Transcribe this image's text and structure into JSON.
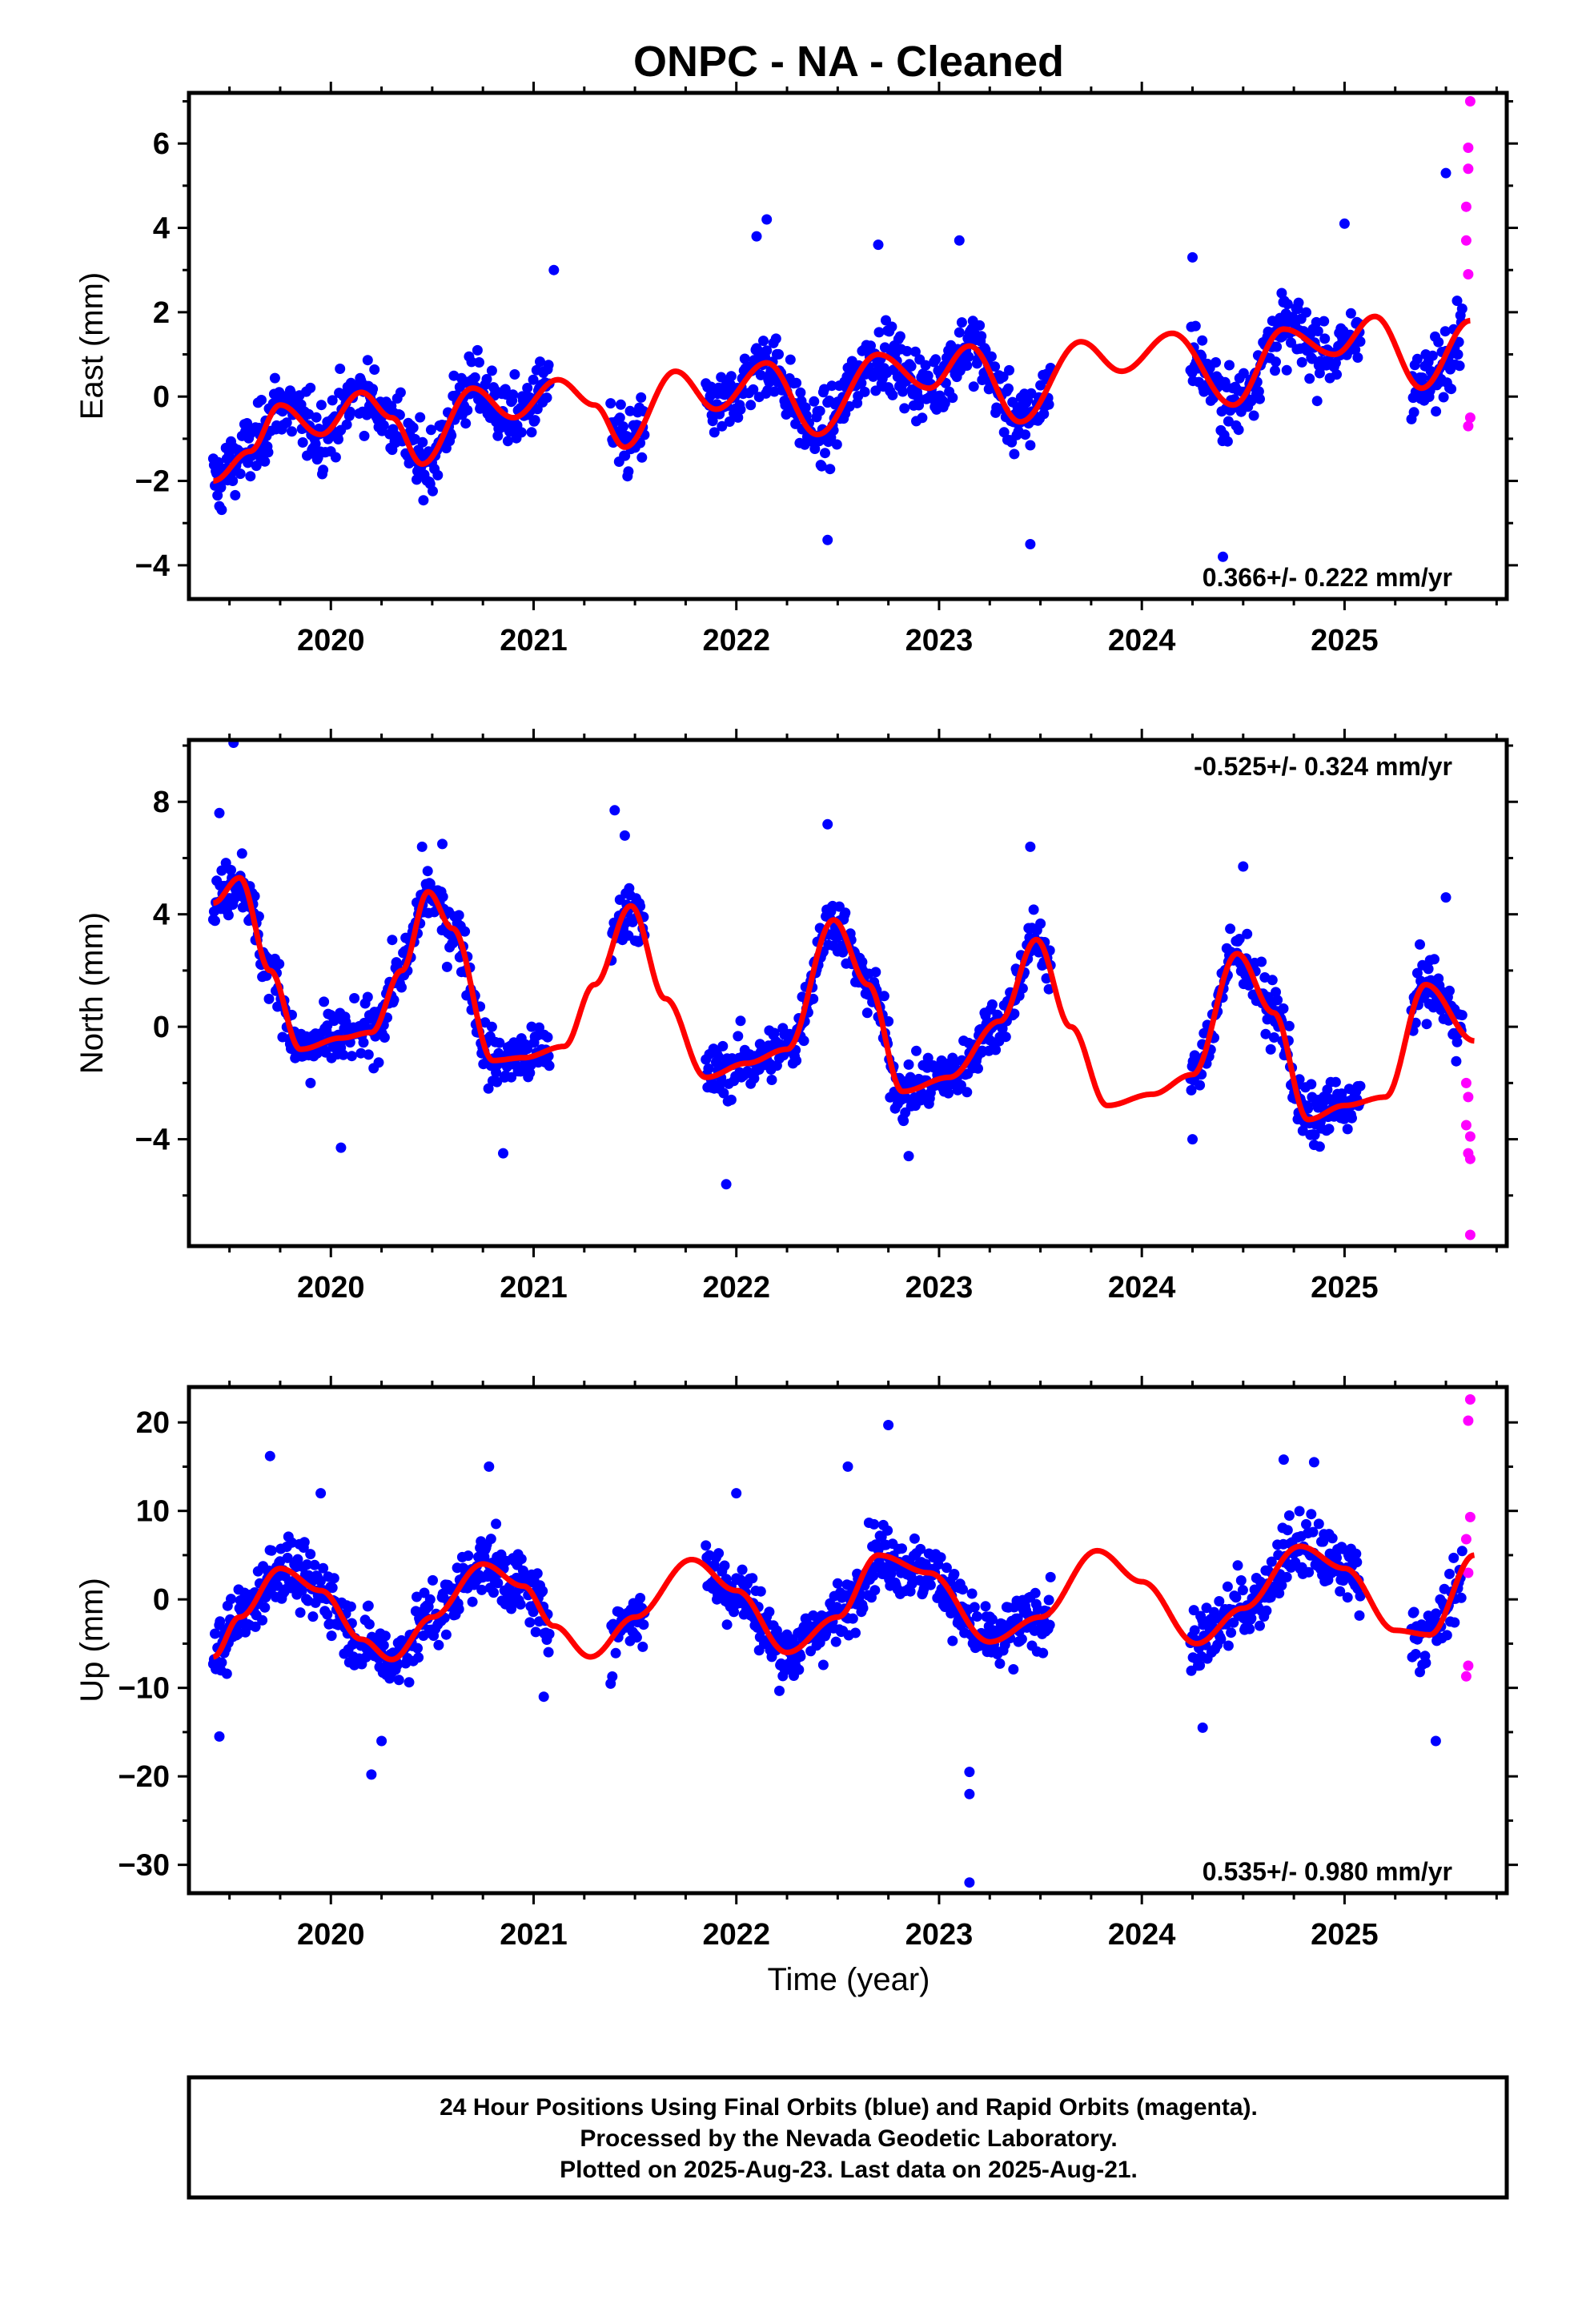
{
  "title": "ONPC  - NA - Cleaned",
  "xlabel": "Time (year)",
  "footer": {
    "line1": "24 Hour Positions Using Final Orbits (blue) and Rapid Orbits (magenta).",
    "line2": "Processed by the Nevada Geodetic Laboratory.",
    "line3": "Plotted on 2025-Aug-23. Last data on 2025-Aug-21."
  },
  "colors": {
    "final_orbits": "#0000ff",
    "rapid_orbits": "#ff00ff",
    "model_fit": "#ff0000",
    "frame": "#000000"
  },
  "chart_data": [
    {
      "type": "scatter",
      "component": "East",
      "ylabel": "East (mm)",
      "rate_text": "0.366+/- 0.222 mm/yr",
      "rate_position": "bottom-right",
      "xlim": [
        2019.3,
        2025.8
      ],
      "ylim": [
        -4.8,
        7.2
      ],
      "x_ticks": [
        2020,
        2021,
        2022,
        2023,
        2024,
        2025
      ],
      "y_ticks": [
        -4,
        -2,
        0,
        2,
        4,
        6
      ],
      "grid": false,
      "trend": {
        "rate_mm_per_yr": 0.366,
        "offset_mm": 0.25
      },
      "data_segments": [
        [
          2019.42,
          2020.12
        ],
        [
          2020.14,
          2021.08
        ],
        [
          2021.38,
          2021.55
        ],
        [
          2021.85,
          2023.55
        ],
        [
          2024.24,
          2025.08
        ],
        [
          2025.33,
          2025.58
        ]
      ],
      "rapid_segment": [
        2025.58,
        2025.64
      ],
      "model_fit": {
        "name": "model fit",
        "x": [
          2019.42,
          2019.6,
          2019.75,
          2019.95,
          2020.15,
          2020.3,
          2020.45,
          2020.7,
          2020.9,
          2021.12,
          2021.3,
          2021.45,
          2021.7,
          2021.9,
          2022.15,
          2022.4,
          2022.7,
          2022.95,
          2023.15,
          2023.4,
          2023.7,
          2023.9,
          2024.15,
          2024.45,
          2024.7,
          2024.95,
          2025.15,
          2025.38,
          2025.62
        ],
        "y": [
          -2.0,
          -1.3,
          -0.2,
          -0.9,
          0.1,
          -0.5,
          -1.6,
          0.2,
          -0.5,
          0.4,
          -0.2,
          -1.2,
          0.6,
          -0.3,
          0.8,
          -0.9,
          1.0,
          0.2,
          1.2,
          -0.6,
          1.3,
          0.6,
          1.5,
          -0.2,
          1.6,
          1.0,
          1.9,
          0.2,
          1.8
        ]
      },
      "samples": [
        {
          "x": 2019.45,
          "y": -2.6
        },
        {
          "x": 2019.5,
          "y": -1.7
        },
        {
          "x": 2019.6,
          "y": -0.9
        },
        {
          "x": 2019.8,
          "y": -0.3
        },
        {
          "x": 2020.0,
          "y": -0.7
        },
        {
          "x": 2020.15,
          "y": 0.2
        },
        {
          "x": 2020.4,
          "y": -1.4
        },
        {
          "x": 2020.7,
          "y": 0.4
        },
        {
          "x": 2021.05,
          "y": 0.6
        },
        {
          "x": 2021.1,
          "y": 3.0
        },
        {
          "x": 2021.45,
          "y": -1.0
        },
        {
          "x": 2022.1,
          "y": 3.8
        },
        {
          "x": 2022.15,
          "y": 4.2
        },
        {
          "x": 2022.45,
          "y": -3.4
        },
        {
          "x": 2022.7,
          "y": 3.6
        },
        {
          "x": 2023.1,
          "y": 3.7
        },
        {
          "x": 2023.45,
          "y": -3.5
        },
        {
          "x": 2024.25,
          "y": 3.3
        },
        {
          "x": 2024.4,
          "y": -3.8
        },
        {
          "x": 2025.0,
          "y": 4.1
        },
        {
          "x": 2025.5,
          "y": 5.3
        }
      ],
      "rapid_samples": [
        {
          "x": 2025.62,
          "y": 7.0
        },
        {
          "x": 2025.61,
          "y": 5.9
        },
        {
          "x": 2025.61,
          "y": 5.4
        },
        {
          "x": 2025.6,
          "y": 4.5
        },
        {
          "x": 2025.6,
          "y": 3.7
        },
        {
          "x": 2025.61,
          "y": 2.9
        },
        {
          "x": 2025.62,
          "y": -0.5
        },
        {
          "x": 2025.61,
          "y": -0.7
        }
      ]
    },
    {
      "type": "scatter",
      "component": "North",
      "ylabel": "North (mm)",
      "rate_text": "-0.525+/- 0.324 mm/yr",
      "rate_position": "top-right",
      "xlim": [
        2019.3,
        2025.8
      ],
      "ylim": [
        -7.8,
        10.2
      ],
      "x_ticks": [
        2020,
        2021,
        2022,
        2023,
        2024,
        2025
      ],
      "y_ticks": [
        -4,
        0,
        4,
        8
      ],
      "grid": false,
      "trend": {
        "rate_mm_per_yr": -0.525,
        "offset_mm": 0
      },
      "data_segments": [
        [
          2019.42,
          2020.12
        ],
        [
          2020.14,
          2021.08
        ],
        [
          2021.38,
          2021.55
        ],
        [
          2021.85,
          2023.55
        ],
        [
          2024.24,
          2025.08
        ],
        [
          2025.33,
          2025.58
        ]
      ],
      "rapid_segment": [
        2025.58,
        2025.64
      ],
      "model_fit": {
        "name": "model fit",
        "x": [
          2019.42,
          2019.55,
          2019.7,
          2019.85,
          2020.05,
          2020.2,
          2020.35,
          2020.48,
          2020.6,
          2020.8,
          2020.95,
          2021.15,
          2021.3,
          2021.48,
          2021.65,
          2021.85,
          2022.05,
          2022.25,
          2022.48,
          2022.65,
          2022.82,
          2023.05,
          2023.3,
          2023.48,
          2023.65,
          2023.83,
          2024.05,
          2024.25,
          2024.47,
          2024.65,
          2024.82,
          2025.0,
          2025.2,
          2025.4,
          2025.64
        ],
        "y": [
          4.4,
          5.3,
          2.0,
          -0.8,
          -0.4,
          -0.2,
          2.0,
          4.8,
          3.5,
          -1.2,
          -1.1,
          -0.7,
          1.5,
          4.3,
          1.0,
          -1.8,
          -1.3,
          -0.8,
          3.8,
          1.5,
          -2.3,
          -1.8,
          0.2,
          3.1,
          0.0,
          -2.8,
          -2.4,
          -1.7,
          2.6,
          0.5,
          -3.3,
          -2.8,
          -2.5,
          1.5,
          -0.5
        ]
      },
      "samples": [
        {
          "x": 2019.45,
          "y": 7.6
        },
        {
          "x": 2019.52,
          "y": 10.1
        },
        {
          "x": 2019.6,
          "y": 5.0
        },
        {
          "x": 2019.9,
          "y": -2.0
        },
        {
          "x": 2020.05,
          "y": -4.3
        },
        {
          "x": 2020.45,
          "y": 6.4
        },
        {
          "x": 2020.55,
          "y": 6.5
        },
        {
          "x": 2020.85,
          "y": -4.5
        },
        {
          "x": 2021.4,
          "y": 7.7
        },
        {
          "x": 2021.45,
          "y": 6.8
        },
        {
          "x": 2021.95,
          "y": -5.6
        },
        {
          "x": 2022.45,
          "y": 7.2
        },
        {
          "x": 2022.85,
          "y": -4.6
        },
        {
          "x": 2023.45,
          "y": 6.4
        },
        {
          "x": 2024.25,
          "y": -4.0
        },
        {
          "x": 2024.5,
          "y": 5.7
        },
        {
          "x": 2024.85,
          "y": -4.2
        },
        {
          "x": 2025.5,
          "y": 4.6
        }
      ],
      "rapid_samples": [
        {
          "x": 2025.6,
          "y": -2.0
        },
        {
          "x": 2025.61,
          "y": -2.5
        },
        {
          "x": 2025.6,
          "y": -3.5
        },
        {
          "x": 2025.62,
          "y": -3.9
        },
        {
          "x": 2025.61,
          "y": -4.5
        },
        {
          "x": 2025.62,
          "y": -4.7
        },
        {
          "x": 2025.62,
          "y": -7.4
        }
      ]
    },
    {
      "type": "scatter",
      "component": "Up",
      "ylabel": "Up (mm)",
      "rate_text": "0.535+/- 0.980 mm/yr",
      "rate_position": "bottom-right",
      "xlim": [
        2019.3,
        2025.8
      ],
      "ylim": [
        -33.2,
        24
      ],
      "x_ticks": [
        2020,
        2021,
        2022,
        2023,
        2024,
        2025
      ],
      "y_ticks": [
        -30,
        -20,
        -10,
        0,
        10,
        20
      ],
      "grid": false,
      "trend": {
        "rate_mm_per_yr": 0.535,
        "offset_mm": 0
      },
      "data_segments": [
        [
          2019.42,
          2020.12
        ],
        [
          2020.14,
          2021.08
        ],
        [
          2021.38,
          2021.55
        ],
        [
          2021.85,
          2023.55
        ],
        [
          2024.24,
          2025.08
        ],
        [
          2025.33,
          2025.58
        ]
      ],
      "rapid_segment": [
        2025.58,
        2025.64
      ],
      "model_fit": {
        "name": "model fit",
        "x": [
          2019.42,
          2019.55,
          2019.75,
          2019.95,
          2020.15,
          2020.3,
          2020.5,
          2020.75,
          2020.95,
          2021.1,
          2021.28,
          2021.5,
          2021.78,
          2022.0,
          2022.25,
          2022.5,
          2022.7,
          2022.95,
          2023.25,
          2023.5,
          2023.78,
          2024.0,
          2024.27,
          2024.5,
          2024.78,
          2025.0,
          2025.25,
          2025.42,
          2025.64
        ],
        "y": [
          -6.5,
          -2.0,
          3.5,
          1.0,
          -4.5,
          -6.8,
          -2.0,
          4.0,
          1.5,
          -3.0,
          -6.5,
          -2.0,
          4.5,
          1.0,
          -6.0,
          -2.0,
          5.0,
          3.0,
          -4.8,
          -2.0,
          5.5,
          2.0,
          -5.0,
          -1.0,
          6.0,
          3.5,
          -3.5,
          -4.0,
          5.0
        ]
      },
      "samples": [
        {
          "x": 2019.45,
          "y": -15.5
        },
        {
          "x": 2019.7,
          "y": 16.2
        },
        {
          "x": 2019.95,
          "y": 12.0
        },
        {
          "x": 2020.2,
          "y": -19.8
        },
        {
          "x": 2020.25,
          "y": -16.0
        },
        {
          "x": 2020.78,
          "y": 15.0
        },
        {
          "x": 2021.05,
          "y": -11.0
        },
        {
          "x": 2022.0,
          "y": 12.0
        },
        {
          "x": 2022.55,
          "y": 15.0
        },
        {
          "x": 2022.75,
          "y": 19.7
        },
        {
          "x": 2023.15,
          "y": -19.5
        },
        {
          "x": 2023.15,
          "y": -22.0
        },
        {
          "x": 2023.15,
          "y": -32.0
        },
        {
          "x": 2024.3,
          "y": -14.5
        },
        {
          "x": 2024.7,
          "y": 15.8
        },
        {
          "x": 2024.85,
          "y": 15.5
        },
        {
          "x": 2025.45,
          "y": -16.0
        }
      ],
      "rapid_samples": [
        {
          "x": 2025.62,
          "y": 22.6
        },
        {
          "x": 2025.61,
          "y": 20.2
        },
        {
          "x": 2025.62,
          "y": 9.3
        },
        {
          "x": 2025.6,
          "y": 6.8
        },
        {
          "x": 2025.61,
          "y": 3.0
        },
        {
          "x": 2025.61,
          "y": -7.5
        },
        {
          "x": 2025.6,
          "y": -8.7
        }
      ]
    }
  ]
}
